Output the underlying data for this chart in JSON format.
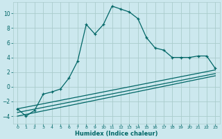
{
  "xlabel": "Humidex (Indice chaleur)",
  "bg_color": "#cce8ee",
  "grid_color": "#aacccc",
  "line_color": "#006666",
  "xlim": [
    -0.5,
    23.5
  ],
  "ylim": [
    -5,
    11.5
  ],
  "xticks": [
    0,
    1,
    2,
    3,
    4,
    5,
    6,
    7,
    8,
    9,
    10,
    11,
    12,
    13,
    14,
    15,
    16,
    17,
    18,
    19,
    20,
    21,
    22,
    23
  ],
  "yticks": [
    -4,
    -2,
    0,
    2,
    4,
    6,
    8,
    10
  ],
  "main_x": [
    0,
    1,
    2,
    3,
    4,
    5,
    6,
    7,
    8,
    9,
    10,
    11,
    12,
    13,
    14,
    15,
    16,
    17,
    18,
    19,
    20,
    21,
    22,
    23
  ],
  "main_y": [
    -3,
    -4,
    -3.2,
    -1.0,
    -0.7,
    -0.3,
    1.2,
    3.5,
    8.5,
    7.2,
    8.5,
    11.0,
    10.6,
    10.2,
    9.3,
    6.7,
    5.3,
    5.0,
    4.0,
    4.0,
    4.0,
    4.2,
    4.2,
    2.5
  ],
  "line2_x": [
    0,
    23
  ],
  "line2_y": [
    -3.0,
    2.3
  ],
  "line3_x": [
    0,
    23
  ],
  "line3_y": [
    -3.5,
    1.8
  ],
  "line4_x": [
    0,
    23
  ],
  "line4_y": [
    -4.0,
    1.5
  ]
}
